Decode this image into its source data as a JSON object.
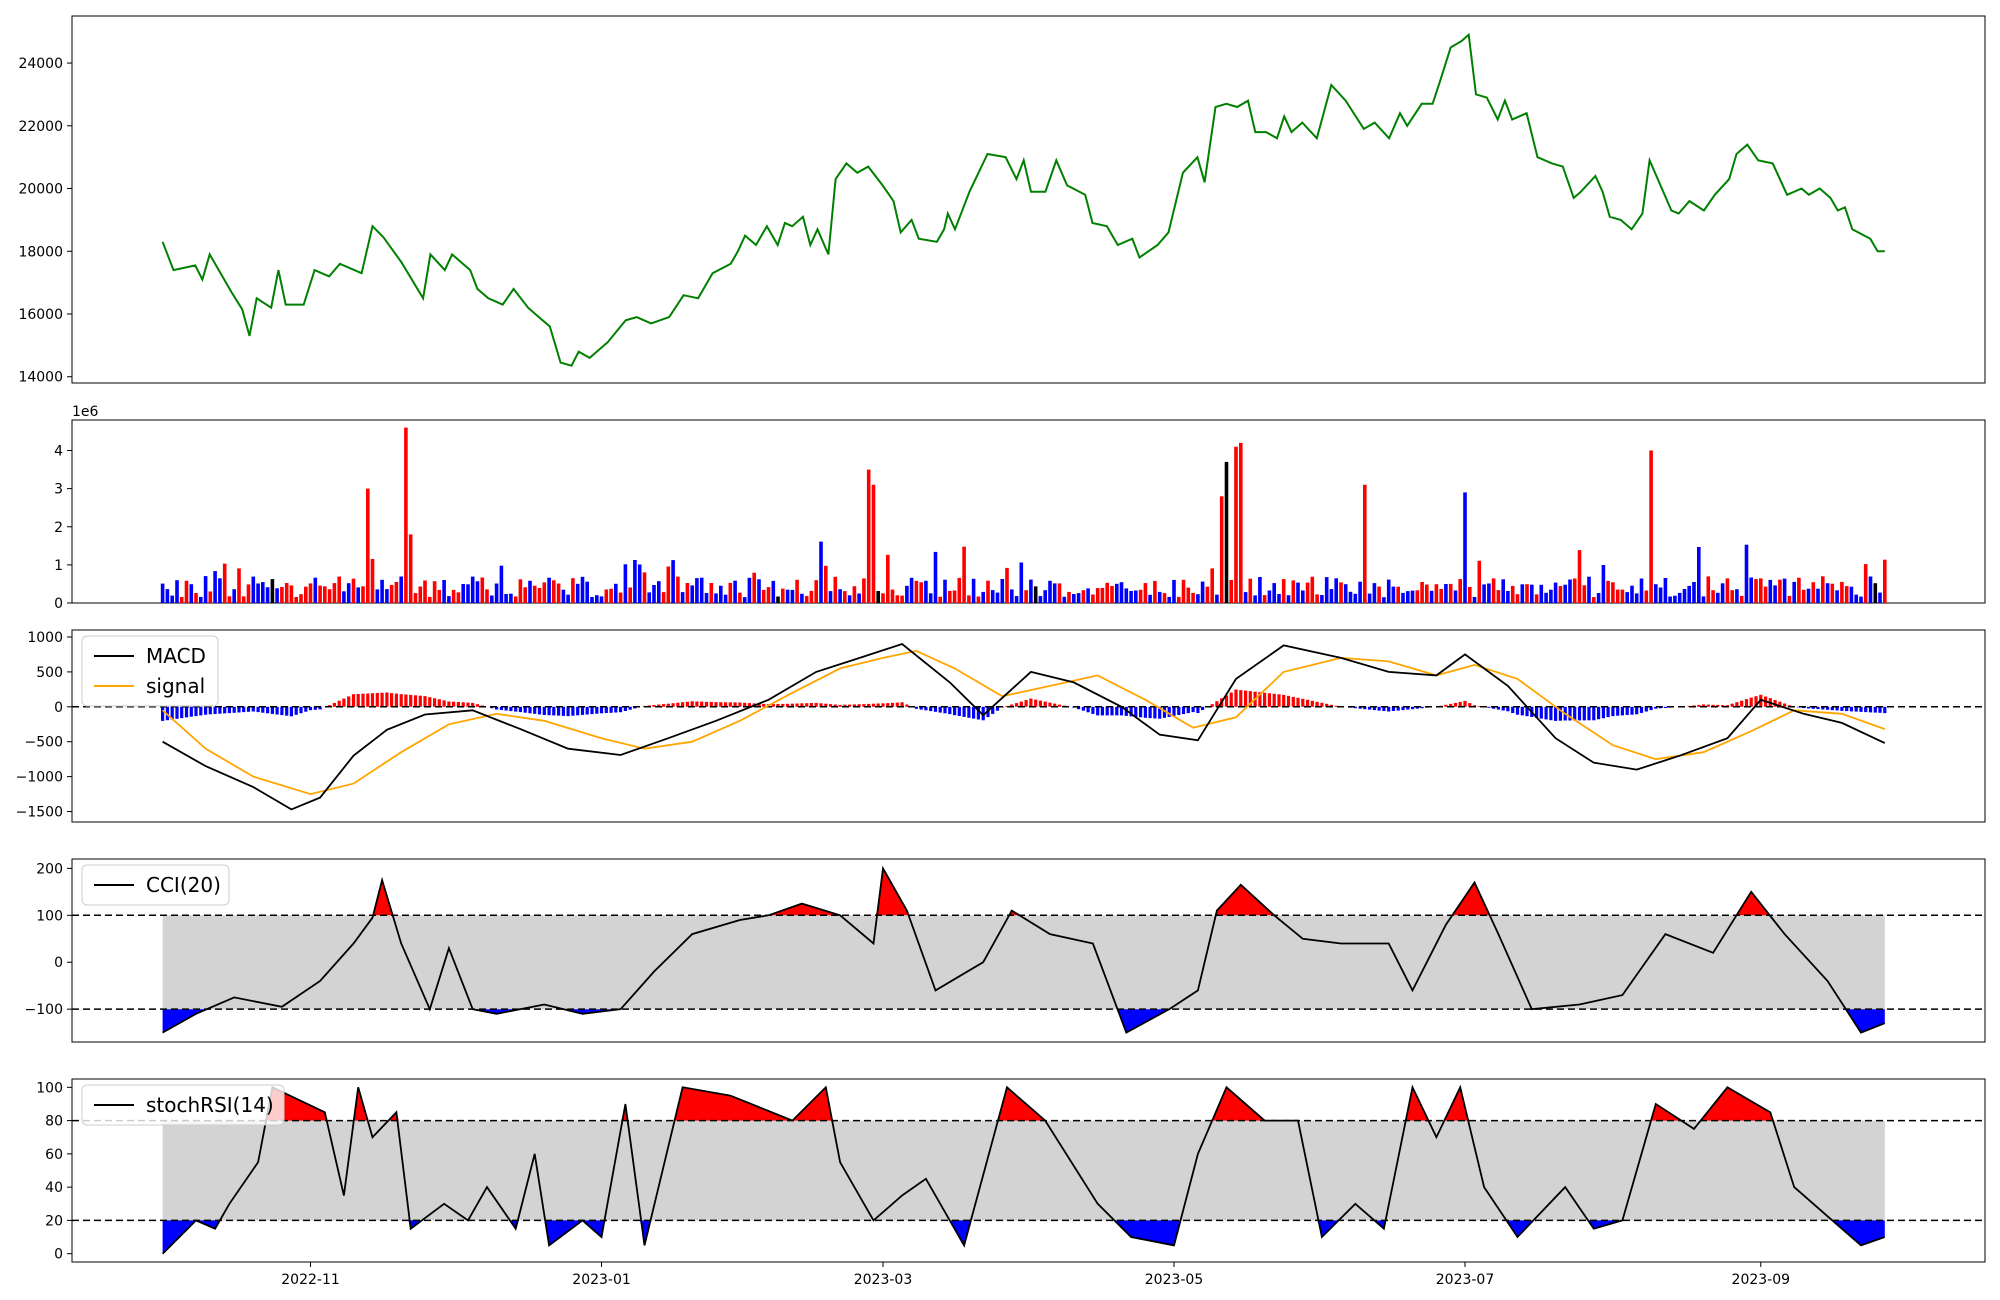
{
  "chart_data": [
    {
      "type": "line",
      "series": [
        {
          "color": "#008000"
        }
      ],
      "x_range": [
        "2022-09-12",
        "2023-10-18"
      ],
      "ylim": [
        13800,
        25500
      ],
      "yticks": [
        14000,
        16000,
        18000,
        20000,
        22000,
        24000
      ],
      "yticklabels": [
        "14000",
        "16000",
        "18000",
        "20000",
        "22000",
        "24000"
      ],
      "grid": false
    },
    {
      "type": "bar",
      "ylim": [
        0,
        4.8
      ],
      "offset_label": "1e6",
      "yticks": [
        0,
        1,
        2,
        3,
        4
      ],
      "yticklabels": [
        "0",
        "1",
        "2",
        "3",
        "4"
      ],
      "colors": {
        "up": "#ff0000",
        "down": "#0000ff",
        "flat": "#000000"
      },
      "spikes": [
        {
          "x": "2022-11-13",
          "value": 3.0,
          "color": "#ff0000"
        },
        {
          "x": "2022-11-21",
          "value": 4.6,
          "color": "#ff0000"
        },
        {
          "x": "2022-11-22",
          "value": 1.8,
          "color": "#ff0000"
        },
        {
          "x": "2023-02-26",
          "value": 3.5,
          "color": "#ff0000"
        },
        {
          "x": "2023-02-27",
          "value": 3.1,
          "color": "#ff0000"
        },
        {
          "x": "2023-05-11",
          "value": 2.8,
          "color": "#ff0000"
        },
        {
          "x": "2023-05-12",
          "value": 3.7,
          "color": "#000000"
        },
        {
          "x": "2023-05-14",
          "value": 4.1,
          "color": "#ff0000"
        },
        {
          "x": "2023-05-15",
          "value": 4.2,
          "color": "#ff0000"
        },
        {
          "x": "2023-06-10",
          "value": 3.1,
          "color": "#ff0000"
        },
        {
          "x": "2023-07-01",
          "value": 2.9,
          "color": "#0000ff"
        },
        {
          "x": "2023-08-09",
          "value": 4.0,
          "color": "#ff0000"
        }
      ],
      "grid": false
    },
    {
      "type": "line",
      "ylim": [
        -1650,
        1100
      ],
      "yticks": [
        -1500,
        -1000,
        -500,
        0,
        500,
        1000
      ],
      "yticklabels": [
        "−1500",
        "−1000",
        "−500",
        "0",
        "500",
        "1000"
      ],
      "hlines": [
        0
      ],
      "series": [
        {
          "name": "MACD",
          "color": "#000000"
        },
        {
          "name": "signal",
          "color": "#ffa500"
        }
      ],
      "histogram_colors": {
        "positive": "#ff0000",
        "negative": "#0000ff"
      },
      "legend": "upper left",
      "macd_points": [
        [
          "2022-10-01",
          -500
        ],
        [
          "2022-10-10",
          -850
        ],
        [
          "2022-10-20",
          -1150
        ],
        [
          "2022-10-28",
          -1470
        ],
        [
          "2022-11-03",
          -1300
        ],
        [
          "2022-11-10",
          -700
        ],
        [
          "2022-11-17",
          -330
        ],
        [
          "2022-11-25",
          -110
        ],
        [
          "2022-12-05",
          -50
        ],
        [
          "2022-12-15",
          -320
        ],
        [
          "2022-12-25",
          -600
        ],
        [
          "2023-01-05",
          -690
        ],
        [
          "2023-01-15",
          -450
        ],
        [
          "2023-01-25",
          -200
        ],
        [
          "2023-02-05",
          100
        ],
        [
          "2023-02-15",
          500
        ],
        [
          "2023-02-25",
          720
        ],
        [
          "2023-03-05",
          900
        ],
        [
          "2023-03-15",
          350
        ],
        [
          "2023-03-22",
          -120
        ],
        [
          "2023-04-01",
          500
        ],
        [
          "2023-04-10",
          350
        ],
        [
          "2023-04-20",
          0
        ],
        [
          "2023-04-28",
          -400
        ],
        [
          "2023-05-06",
          -480
        ],
        [
          "2023-05-14",
          400
        ],
        [
          "2023-05-24",
          880
        ],
        [
          "2023-06-05",
          700
        ],
        [
          "2023-06-15",
          500
        ],
        [
          "2023-06-25",
          450
        ],
        [
          "2023-07-01",
          750
        ],
        [
          "2023-07-10",
          300
        ],
        [
          "2023-07-20",
          -450
        ],
        [
          "2023-07-28",
          -800
        ],
        [
          "2023-08-06",
          -900
        ],
        [
          "2023-08-15",
          -700
        ],
        [
          "2023-08-25",
          -450
        ],
        [
          "2023-09-01",
          100
        ],
        [
          "2023-09-10",
          -100
        ],
        [
          "2023-09-18",
          -230
        ],
        [
          "2023-09-27",
          -520
        ]
      ],
      "signal_points": [
        [
          "2022-10-01",
          -50
        ],
        [
          "2022-10-10",
          -600
        ],
        [
          "2022-10-20",
          -1000
        ],
        [
          "2022-11-01",
          -1250
        ],
        [
          "2022-11-10",
          -1100
        ],
        [
          "2022-11-20",
          -650
        ],
        [
          "2022-11-30",
          -250
        ],
        [
          "2022-12-10",
          -100
        ],
        [
          "2022-12-20",
          -200
        ],
        [
          "2023-01-01",
          -450
        ],
        [
          "2023-01-10",
          -600
        ],
        [
          "2023-01-20",
          -500
        ],
        [
          "2023-01-30",
          -200
        ],
        [
          "2023-02-10",
          200
        ],
        [
          "2023-02-20",
          550
        ],
        [
          "2023-03-01",
          700
        ],
        [
          "2023-03-08",
          800
        ],
        [
          "2023-03-16",
          550
        ],
        [
          "2023-03-26",
          150
        ],
        [
          "2023-04-05",
          300
        ],
        [
          "2023-04-15",
          450
        ],
        [
          "2023-04-25",
          100
        ],
        [
          "2023-05-05",
          -300
        ],
        [
          "2023-05-14",
          -150
        ],
        [
          "2023-05-24",
          500
        ],
        [
          "2023-06-05",
          700
        ],
        [
          "2023-06-15",
          650
        ],
        [
          "2023-06-25",
          450
        ],
        [
          "2023-07-03",
          600
        ],
        [
          "2023-07-12",
          400
        ],
        [
          "2023-07-22",
          -100
        ],
        [
          "2023-08-01",
          -550
        ],
        [
          "2023-08-10",
          -750
        ],
        [
          "2023-08-20",
          -650
        ],
        [
          "2023-08-30",
          -350
        ],
        [
          "2023-09-08",
          -50
        ],
        [
          "2023-09-18",
          -100
        ],
        [
          "2023-09-27",
          -320
        ]
      ]
    },
    {
      "type": "area",
      "ylim": [
        -170,
        220
      ],
      "yticks": [
        -100,
        0,
        100,
        200
      ],
      "yticklabels": [
        "−100",
        "0",
        "100",
        "200"
      ],
      "hlines": [
        100,
        -100
      ],
      "band": [
        -100,
        100
      ],
      "series": [
        {
          "name": "CCI(20)",
          "color": "#000000"
        }
      ],
      "fill_colors": {
        "above": "#ff0000",
        "below": "#0000ff",
        "band": "#d3d3d3"
      },
      "legend": "upper left",
      "points": [
        [
          "2022-10-01",
          -150
        ],
        [
          "2022-10-08",
          -110
        ],
        [
          "2022-10-16",
          -75
        ],
        [
          "2022-10-26",
          -95
        ],
        [
          "2022-11-03",
          -40
        ],
        [
          "2022-11-10",
          40
        ],
        [
          "2022-11-14",
          95
        ],
        [
          "2022-11-16",
          175
        ],
        [
          "2022-11-20",
          40
        ],
        [
          "2022-11-26",
          -100
        ],
        [
          "2022-11-30",
          30
        ],
        [
          "2022-12-05",
          -100
        ],
        [
          "2022-12-10",
          -110
        ],
        [
          "2022-12-20",
          -90
        ],
        [
          "2022-12-28",
          -110
        ],
        [
          "2023-01-05",
          -100
        ],
        [
          "2023-01-12",
          -20
        ],
        [
          "2023-01-20",
          60
        ],
        [
          "2023-01-30",
          90
        ],
        [
          "2023-02-05",
          100
        ],
        [
          "2023-02-12",
          125
        ],
        [
          "2023-02-20",
          100
        ],
        [
          "2023-02-27",
          40
        ],
        [
          "2023-03-01",
          200
        ],
        [
          "2023-03-06",
          110
        ],
        [
          "2023-03-12",
          -60
        ],
        [
          "2023-03-22",
          0
        ],
        [
          "2023-03-28",
          110
        ],
        [
          "2023-04-05",
          60
        ],
        [
          "2023-04-14",
          40
        ],
        [
          "2023-04-21",
          -150
        ],
        [
          "2023-04-30",
          -100
        ],
        [
          "2023-05-06",
          -60
        ],
        [
          "2023-05-10",
          110
        ],
        [
          "2023-05-15",
          165
        ],
        [
          "2023-05-22",
          100
        ],
        [
          "2023-05-28",
          50
        ],
        [
          "2023-06-05",
          40
        ],
        [
          "2023-06-15",
          40
        ],
        [
          "2023-06-20",
          -60
        ],
        [
          "2023-06-27",
          80
        ],
        [
          "2023-07-03",
          170
        ],
        [
          "2023-07-08",
          60
        ],
        [
          "2023-07-15",
          -100
        ],
        [
          "2023-07-25",
          -90
        ],
        [
          "2023-08-03",
          -70
        ],
        [
          "2023-08-12",
          60
        ],
        [
          "2023-08-22",
          20
        ],
        [
          "2023-08-30",
          150
        ],
        [
          "2023-09-06",
          60
        ],
        [
          "2023-09-15",
          -40
        ],
        [
          "2023-09-22",
          -150
        ],
        [
          "2023-09-27",
          -130
        ]
      ]
    },
    {
      "type": "area",
      "ylim": [
        -5,
        105
      ],
      "yticks": [
        0,
        20,
        40,
        60,
        80,
        100
      ],
      "yticklabels": [
        "0",
        "20",
        "40",
        "60",
        "80",
        "100"
      ],
      "hlines": [
        80,
        20
      ],
      "band": [
        20,
        80
      ],
      "series": [
        {
          "name": "stochRSI(14)",
          "color": "#000000"
        }
      ],
      "fill_colors": {
        "above": "#ff0000",
        "below": "#0000ff",
        "band": "#d3d3d3"
      },
      "legend": "upper left",
      "x_tick_labels": [
        "2022-11",
        "2023-01",
        "2023-03",
        "2023-05",
        "2023-07",
        "2023-09"
      ],
      "points": [
        [
          "2022-10-01",
          0
        ],
        [
          "2022-10-08",
          20
        ],
        [
          "2022-10-12",
          15
        ],
        [
          "2022-10-15",
          30
        ],
        [
          "2022-10-21",
          55
        ],
        [
          "2022-10-24",
          100
        ],
        [
          "2022-11-04",
          85
        ],
        [
          "2022-11-08",
          35
        ],
        [
          "2022-11-11",
          100
        ],
        [
          "2022-11-14",
          70
        ],
        [
          "2022-11-19",
          85
        ],
        [
          "2022-11-22",
          15
        ],
        [
          "2022-11-29",
          30
        ],
        [
          "2022-12-04",
          20
        ],
        [
          "2022-12-08",
          40
        ],
        [
          "2022-12-14",
          15
        ],
        [
          "2022-12-18",
          60
        ],
        [
          "2022-12-21",
          5
        ],
        [
          "2022-12-28",
          20
        ],
        [
          "2023-01-01",
          10
        ],
        [
          "2023-01-06",
          90
        ],
        [
          "2023-01-10",
          5
        ],
        [
          "2023-01-18",
          100
        ],
        [
          "2023-01-28",
          95
        ],
        [
          "2023-02-10",
          80
        ],
        [
          "2023-02-17",
          100
        ],
        [
          "2023-02-20",
          55
        ],
        [
          "2023-02-27",
          20
        ],
        [
          "2023-03-05",
          35
        ],
        [
          "2023-03-10",
          45
        ],
        [
          "2023-03-18",
          5
        ],
        [
          "2023-03-27",
          100
        ],
        [
          "2023-04-04",
          80
        ],
        [
          "2023-04-15",
          30
        ],
        [
          "2023-04-22",
          10
        ],
        [
          "2023-05-01",
          5
        ],
        [
          "2023-05-06",
          60
        ],
        [
          "2023-05-12",
          100
        ],
        [
          "2023-05-20",
          80
        ],
        [
          "2023-05-27",
          80
        ],
        [
          "2023-06-01",
          10
        ],
        [
          "2023-06-08",
          30
        ],
        [
          "2023-06-14",
          15
        ],
        [
          "2023-06-20",
          100
        ],
        [
          "2023-06-25",
          70
        ],
        [
          "2023-06-30",
          100
        ],
        [
          "2023-07-05",
          40
        ],
        [
          "2023-07-12",
          10
        ],
        [
          "2023-07-22",
          40
        ],
        [
          "2023-07-28",
          15
        ],
        [
          "2023-08-03",
          20
        ],
        [
          "2023-08-10",
          90
        ],
        [
          "2023-08-18",
          75
        ],
        [
          "2023-08-25",
          100
        ],
        [
          "2023-09-03",
          85
        ],
        [
          "2023-09-08",
          40
        ],
        [
          "2023-09-16",
          20
        ],
        [
          "2023-09-22",
          5
        ],
        [
          "2023-09-27",
          10
        ]
      ]
    }
  ]
}
